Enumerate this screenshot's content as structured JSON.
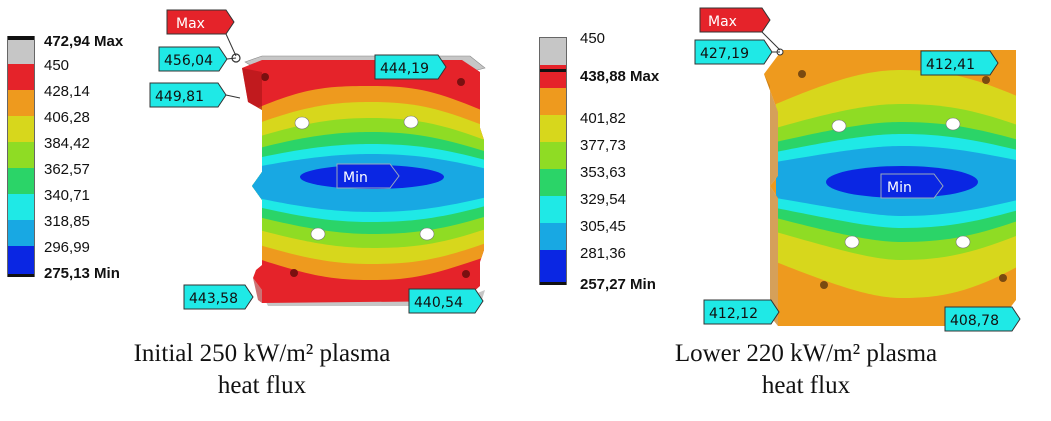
{
  "left": {
    "legend": {
      "max_label": "472,94 Max",
      "values": [
        "450",
        "428,14",
        "406,28",
        "384,42",
        "362,57",
        "340,71",
        "318,85",
        "296,99"
      ],
      "min_label": "275,13 Min",
      "colors": [
        "#c6c6c6",
        "#e5232a",
        "#ee9a1e",
        "#d7d71c",
        "#8fdc24",
        "#2bd468",
        "#1fe9e6",
        "#18a8e3",
        "#0a26e3"
      ]
    },
    "probes": {
      "max_tag": "Max",
      "min_tag": "Min",
      "top_left": "456,04",
      "left_upper": "449,81",
      "top_right": "444,19",
      "bottom_left": "443,58",
      "bottom_right": "440,54"
    },
    "caption": {
      "line1": "Initial 250 kW/m² plasma",
      "line2": "heat flux"
    }
  },
  "right": {
    "legend": {
      "top_value": "450",
      "max_label": "438,88 Max",
      "values": [
        "401,82",
        "377,73",
        "353,63",
        "329,54",
        "305,45",
        "281,36"
      ],
      "min_label": "257,27 Min",
      "colors": [
        "#c6c6c6",
        "#e5232a",
        "#ee9a1e",
        "#d7d71c",
        "#8fdc24",
        "#2bd468",
        "#1fe9e6",
        "#18a8e3",
        "#0a26e3"
      ]
    },
    "probes": {
      "max_tag": "Max",
      "min_tag": "Min",
      "top_left": "427,19",
      "top_right": "412,41",
      "bottom_left": "412,12",
      "bottom_right": "408,78"
    },
    "caption": {
      "line1": "Lower 220 kW/m² plasma",
      "line2": "heat flux"
    }
  }
}
